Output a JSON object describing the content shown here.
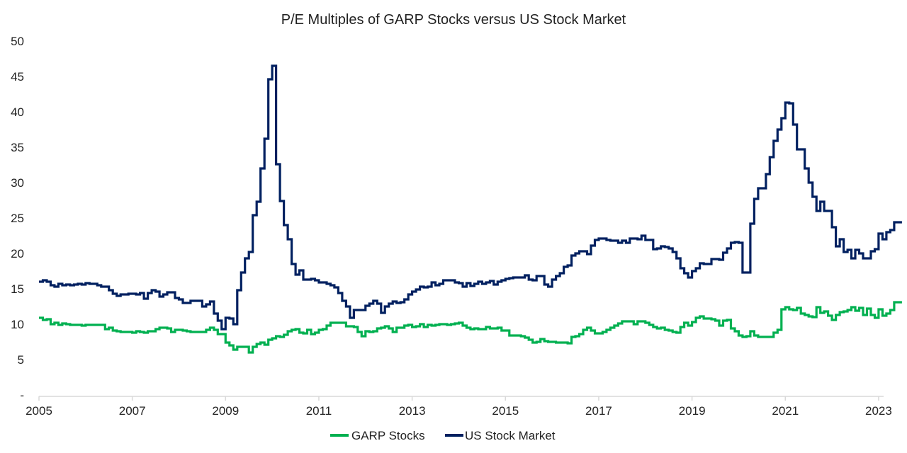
{
  "chart_data": {
    "type": "line",
    "title": "P/E Multiples of GARP Stocks versus US Stock Market",
    "xlabel": "",
    "ylabel": "",
    "x_start": "2005-01",
    "frequency": "monthly",
    "x_ticks": [
      "2005",
      "2007",
      "2009",
      "2011",
      "2013",
      "2015",
      "2017",
      "2019",
      "2021",
      "2023"
    ],
    "y_ticks": [
      "-",
      "5",
      "10",
      "15",
      "20",
      "25",
      "30",
      "35",
      "40",
      "45",
      "50"
    ],
    "ylim": [
      0,
      50
    ],
    "grid": false,
    "legend": "bottom",
    "series": [
      {
        "name": "GARP Stocks",
        "color": "#00b050",
        "values": [
          10.9,
          10.6,
          10.7,
          10,
          10.2,
          9.9,
          10.1,
          10,
          9.9,
          9.9,
          9.9,
          9.8,
          9.9,
          9.9,
          9.9,
          9.9,
          9.9,
          9.3,
          9.5,
          9.1,
          9,
          8.9,
          8.9,
          8.9,
          8.8,
          9,
          8.9,
          8.8,
          9,
          9,
          9.3,
          9.5,
          9.5,
          9.4,
          8.9,
          9.2,
          9.2,
          9.1,
          9,
          8.9,
          8.9,
          8.9,
          8.9,
          9.2,
          9.5,
          9.2,
          8.6,
          8.6,
          7.4,
          7,
          6.4,
          6.8,
          6.8,
          6.8,
          6,
          6.8,
          7.2,
          7.4,
          7.1,
          7.8,
          8,
          8.3,
          8.2,
          8.5,
          9,
          9.2,
          9.3,
          8.8,
          8.7,
          9.2,
          8.6,
          8.8,
          9.2,
          9.3,
          9.8,
          10.2,
          10.2,
          10.2,
          10.2,
          9.7,
          9.7,
          9.6,
          8.9,
          8.3,
          9,
          8.9,
          9,
          9.4,
          9.5,
          9.7,
          9.4,
          8.9,
          9.5,
          9.5,
          9.8,
          9.9,
          9.6,
          9.7,
          10,
          9.6,
          9.9,
          9.8,
          9.9,
          10,
          10,
          9.9,
          10,
          10.1,
          10.2,
          9.8,
          9.5,
          9.3,
          9.4,
          9.3,
          9.3,
          9.6,
          9.4,
          9.4,
          9.5,
          9.1,
          9.1,
          8.4,
          8.4,
          8.4,
          8.3,
          8.1,
          7.8,
          7.4,
          7.5,
          7.9,
          7.6,
          7.5,
          7.5,
          7.4,
          7.4,
          7.4,
          7.3,
          8.2,
          8.3,
          8.6,
          9.2,
          9.5,
          9.1,
          8.7,
          8.7,
          8.9,
          9.2,
          9.5,
          9.8,
          10.1,
          10.4,
          10.4,
          10.4,
          10,
          10.4,
          10.4,
          10.2,
          9.9,
          9.6,
          9.4,
          9.5,
          9.2,
          9.1,
          8.9,
          8.8,
          9.6,
          10.2,
          9.8,
          10.3,
          10.9,
          11.1,
          10.8,
          10.8,
          10.7,
          10.5,
          9.8,
          10.5,
          10.6,
          9.4,
          9,
          8.4,
          8.2,
          8.3,
          9,
          8.4,
          8.2,
          8.2,
          8.2,
          8.2,
          8.8,
          9.2,
          12.1,
          12.4,
          12.1,
          12,
          12.3,
          11.5,
          11.3,
          11.1,
          11,
          12.4,
          11.6,
          11.8,
          11.2,
          10.6,
          11.3,
          11.7,
          11.8,
          12,
          12.4,
          11.9,
          12.3,
          11.3,
          12.2,
          11.3,
          10.9,
          12.1,
          11.2,
          11.5,
          12,
          13.1,
          13.1
        ]
      },
      {
        "name": "US Stock Market",
        "color": "#002060",
        "values": [
          16,
          16.2,
          16,
          15.5,
          15.3,
          15.7,
          15.5,
          15.6,
          15.5,
          15.6,
          15.7,
          15.6,
          15.8,
          15.7,
          15.7,
          15.5,
          15.3,
          15.3,
          14.8,
          14.3,
          14,
          14.2,
          14.2,
          14.3,
          14.3,
          14.2,
          14.4,
          13.6,
          14.4,
          14.8,
          14.6,
          13.9,
          14.2,
          14.5,
          14.5,
          13.7,
          13.5,
          13,
          13,
          13.3,
          13.3,
          13.3,
          12.5,
          12.8,
          13.2,
          11.5,
          10.5,
          9.3,
          10.9,
          10.8,
          10,
          14.8,
          17.3,
          19.3,
          20.2,
          25.4,
          27.3,
          32,
          36.2,
          44.6,
          46.5,
          32.6,
          27.4,
          24,
          22,
          18.5,
          17,
          17.6,
          16.3,
          16.3,
          16.4,
          16.2,
          15.9,
          15.9,
          15.7,
          15.5,
          15.2,
          14.4,
          13.3,
          12.5,
          10.9,
          12,
          12,
          12,
          12.6,
          12.9,
          13.3,
          12.9,
          11.6,
          12.5,
          12.9,
          13.2,
          13,
          13.1,
          13.5,
          14.2,
          14.6,
          14.9,
          15.3,
          15.2,
          15.3,
          15.9,
          15.5,
          15.7,
          16.2,
          16.2,
          16.2,
          15.9,
          15.8,
          15.3,
          15.8,
          15.4,
          15.7,
          16,
          15.7,
          15.9,
          16.1,
          15.6,
          16,
          16.2,
          16.4,
          16.5,
          16.6,
          16.6,
          16.6,
          16.9,
          16.3,
          16.2,
          16.8,
          16.8,
          15.6,
          15.3,
          16.3,
          16.8,
          17.2,
          18.1,
          18.3,
          19.7,
          20,
          20.3,
          20.3,
          19.9,
          21.1,
          21.9,
          22.1,
          22.1,
          21.9,
          21.8,
          21.8,
          21.5,
          21.8,
          21.5,
          22.1,
          22.1,
          22,
          22.5,
          21.9,
          21.9,
          20.6,
          20.7,
          21,
          20.9,
          20.7,
          20.2,
          19.3,
          17.9,
          17.2,
          16.6,
          17.5,
          17.9,
          18.6,
          18.5,
          18.5,
          19.2,
          19.2,
          19.1,
          20.1,
          20.7,
          21.5,
          21.6,
          21.5,
          17.3,
          17.3,
          24.2,
          27.7,
          29.2,
          29.2,
          31.2,
          33.6,
          35.9,
          37.5,
          39.1,
          41.3,
          41.2,
          38.2,
          34.7,
          34.7,
          32,
          30,
          28,
          26,
          27.3,
          26,
          26,
          23.7,
          21,
          22,
          20.2,
          20.5,
          19.3,
          20.5,
          20,
          19.3,
          19.3,
          20.3,
          20.6,
          22.8,
          22,
          23,
          23.3,
          24.4,
          24.4
        ]
      }
    ]
  }
}
